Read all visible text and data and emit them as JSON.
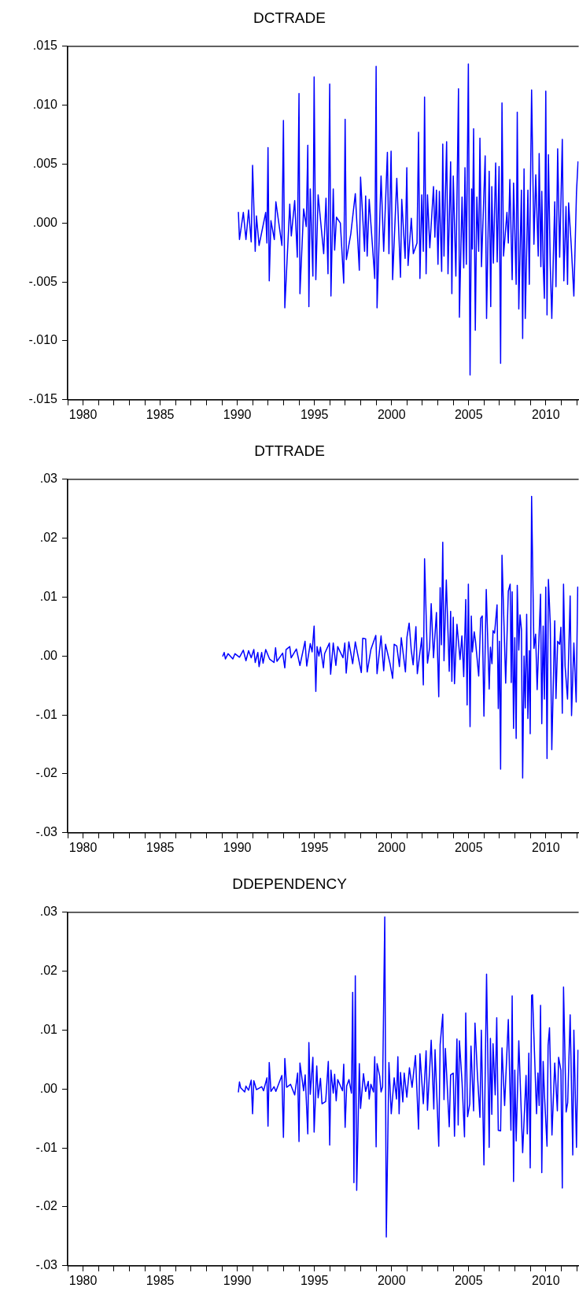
{
  "chart_data": [
    {
      "type": "line",
      "title": "DCTRADE",
      "xlim": [
        1979,
        2012.13
      ],
      "ylim": [
        -0.015,
        0.015
      ],
      "xticks": [
        {
          "value": 1979,
          "label": null
        },
        1980,
        {
          "value": 1981,
          "label": null
        },
        {
          "value": 1982,
          "label": null
        },
        {
          "value": 1983,
          "label": null
        },
        {
          "value": 1984,
          "label": null
        },
        1985,
        {
          "value": 1986,
          "label": null
        },
        {
          "value": 1987,
          "label": null
        },
        {
          "value": 1988,
          "label": null
        },
        {
          "value": 1989,
          "label": null
        },
        1990,
        {
          "value": 1991,
          "label": null
        },
        {
          "value": 1992,
          "label": null
        },
        {
          "value": 1993,
          "label": null
        },
        {
          "value": 1994,
          "label": null
        },
        1995,
        {
          "value": 1996,
          "label": null
        },
        {
          "value": 1997,
          "label": null
        },
        {
          "value": 1998,
          "label": null
        },
        {
          "value": 1999,
          "label": null
        },
        2000,
        {
          "value": 2001,
          "label": null
        },
        {
          "value": 2002,
          "label": null
        },
        {
          "value": 2003,
          "label": null
        },
        {
          "value": 2004,
          "label": null
        },
        2005,
        {
          "value": 2006,
          "label": null
        },
        {
          "value": 2007,
          "label": null
        },
        {
          "value": 2008,
          "label": null
        },
        {
          "value": 2009,
          "label": null
        },
        2010,
        {
          "value": 2011,
          "label": null
        },
        {
          "value": 2012,
          "label": null
        }
      ],
      "yticks": [
        {
          "value": -0.015,
          "label": "-.015"
        },
        {
          "value": -0.01,
          "label": "-.010"
        },
        {
          "value": -0.005,
          "label": "-.005"
        },
        {
          "value": 0,
          "label": ".000"
        },
        {
          "value": 0.005,
          "label": ".005"
        },
        {
          "value": 0.01,
          "label": ".010"
        },
        {
          "value": 0.015,
          "label": ".015"
        }
      ],
      "grid": false,
      "legend": false,
      "marker": "none",
      "line_style": "solid",
      "series": [
        {
          "color": "#0000ff",
          "x": [
            1990.07,
            1990.14,
            1990.39,
            1990.56,
            1990.73,
            1990.9,
            1990.99,
            1991.16,
            1991.24,
            1991.41,
            1991.84,
            1991.92,
            1991.99,
            1992.07,
            1992.18,
            1992.4,
            1992.5,
            1992.89,
            1992.99,
            1993.08,
            1993.4,
            1993.5,
            1993.72,
            1993.89,
            1994.0,
            1994.06,
            1994.3,
            1994.47,
            1994.57,
            1994.64,
            1994.73,
            1994.9,
            1994.98,
            1995.09,
            1995.24,
            1995.6,
            1995.75,
            1995.88,
            1995.99,
            1996.07,
            1996.22,
            1996.31,
            1996.43,
            1996.68,
            1996.9,
            1996.99,
            1997.07,
            1997.36,
            1997.65,
            1997.91,
            1997.99,
            1998.25,
            1998.32,
            1998.42,
            1998.55,
            1998.91,
            1999.0,
            1999.06,
            1999.32,
            1999.49,
            1999.73,
            1999.83,
            1999.97,
            2000.07,
            2000.34,
            2000.58,
            2000.66,
            2000.88,
            2000.99,
            2001.07,
            2001.28,
            2001.41,
            2001.65,
            2001.75,
            2001.84,
            2001.96,
            2002.06,
            2002.14,
            2002.24,
            2002.33,
            2002.48,
            2002.72,
            2002.81,
            2002.91,
            2003.01,
            2003.1,
            2003.25,
            2003.32,
            2003.4,
            2003.57,
            2003.66,
            2003.83,
            2003.91,
            2004.0,
            2004.17,
            2004.34,
            2004.4,
            2004.57,
            2004.68,
            2004.76,
            2004.85,
            2004.98,
            2005.09,
            2005.19,
            2005.24,
            2005.32,
            2005.43,
            2005.53,
            2005.65,
            2005.73,
            2005.83,
            2006.07,
            2006.16,
            2006.33,
            2006.43,
            2006.5,
            2006.6,
            2006.75,
            2006.85,
            2006.97,
            2007.07,
            2007.16,
            2007.26,
            2007.48,
            2007.57,
            2007.67,
            2007.82,
            2007.91,
            2008.08,
            2008.15,
            2008.25,
            2008.42,
            2008.5,
            2008.59,
            2008.67,
            2008.84,
            2008.93,
            2009.08,
            2009.23,
            2009.35,
            2009.51,
            2009.57,
            2009.68,
            2009.74,
            2009.83,
            2009.91,
            2010.0,
            2010.08,
            2010.17,
            2010.29,
            2010.39,
            2010.58,
            2010.66,
            2010.77,
            2010.9,
            2011.07,
            2011.17,
            2011.31,
            2011.41,
            2011.48,
            2011.65,
            2011.82,
            2011.99,
            2012.09
          ],
          "values": [
            0.0009,
            -0.0014,
            0.0009,
            -0.0014,
            0.0011,
            -0.0016,
            0.0049,
            -0.0024,
            0.0006,
            -0.0019,
            0.0009,
            -0.0017,
            0.0064,
            -0.0049,
            0.0002,
            -0.0014,
            0.0018,
            -0.0019,
            0.0087,
            -0.0072,
            0.0016,
            -0.0011,
            0.0019,
            -0.0029,
            0.011,
            -0.006,
            0.0012,
            -0.0003,
            0.0066,
            -0.0071,
            0.0029,
            -0.0045,
            0.0124,
            -0.0048,
            0.0024,
            -0.0026,
            0.0021,
            -0.0043,
            0.0118,
            -0.0062,
            0.0029,
            -0.0023,
            0.0005,
            0.0,
            -0.0051,
            0.0088,
            -0.0031,
            -0.0009,
            0.0025,
            -0.004,
            0.0039,
            -0.0024,
            0.0023,
            -0.0028,
            0.002,
            -0.0047,
            0.0133,
            -0.0072,
            0.004,
            -0.0024,
            0.006,
            -0.0026,
            0.0061,
            -0.0048,
            0.0038,
            -0.0046,
            0.002,
            -0.003,
            0.0047,
            -0.0036,
            0.0004,
            -0.0026,
            -0.0017,
            0.0077,
            -0.0047,
            0.0024,
            -0.0024,
            0.0107,
            -0.0043,
            0.0024,
            -0.0021,
            0.0031,
            -0.0012,
            0.0028,
            -0.0035,
            0.0027,
            -0.0041,
            0.0067,
            -0.0028,
            0.0069,
            -0.0043,
            0.0052,
            -0.006,
            0.004,
            -0.0045,
            0.0114,
            -0.008,
            0.0022,
            -0.0038,
            0.0047,
            -0.0035,
            0.0135,
            -0.0129,
            0.0029,
            -0.0022,
            0.008,
            -0.0091,
            0.0022,
            -0.0024,
            0.0072,
            -0.0037,
            0.0057,
            -0.0081,
            0.0044,
            -0.0071,
            0.0031,
            -0.0034,
            0.0051,
            -0.0033,
            0.0048,
            -0.0119,
            0.0102,
            -0.0028,
            0.0009,
            -0.0017,
            0.0037,
            -0.0048,
            0.0034,
            -0.0052,
            0.0094,
            -0.0073,
            0.0028,
            -0.0098,
            0.0046,
            -0.0081,
            0.0028,
            -0.0052,
            0.0113,
            -0.0018,
            0.0041,
            -0.0028,
            0.0059,
            -0.0037,
            0.0027,
            -0.0035,
            -0.0064,
            0.0112,
            -0.0078,
            0.0058,
            -0.0036,
            -0.0081,
            0.0018,
            -0.0054,
            0.0063,
            -0.0029,
            0.0071,
            -0.0049,
            0.0014,
            -0.0052,
            0.0017,
            -0.0019,
            -0.0062,
            0.0026,
            0.0052
          ]
        }
      ]
    },
    {
      "type": "line",
      "title": "DTTRADE",
      "xlim": [
        1979,
        2012.13
      ],
      "ylim": [
        -0.03,
        0.03
      ],
      "xticks": [
        {
          "value": 1979,
          "label": null
        },
        1980,
        {
          "value": 1981,
          "label": null
        },
        {
          "value": 1982,
          "label": null
        },
        {
          "value": 1983,
          "label": null
        },
        {
          "value": 1984,
          "label": null
        },
        1985,
        {
          "value": 1986,
          "label": null
        },
        {
          "value": 1987,
          "label": null
        },
        {
          "value": 1988,
          "label": null
        },
        {
          "value": 1989,
          "label": null
        },
        1990,
        {
          "value": 1991,
          "label": null
        },
        {
          "value": 1992,
          "label": null
        },
        {
          "value": 1993,
          "label": null
        },
        {
          "value": 1994,
          "label": null
        },
        1995,
        {
          "value": 1996,
          "label": null
        },
        {
          "value": 1997,
          "label": null
        },
        {
          "value": 1998,
          "label": null
        },
        {
          "value": 1999,
          "label": null
        },
        2000,
        {
          "value": 2001,
          "label": null
        },
        {
          "value": 2002,
          "label": null
        },
        {
          "value": 2003,
          "label": null
        },
        {
          "value": 2004,
          "label": null
        },
        2005,
        {
          "value": 2006,
          "label": null
        },
        {
          "value": 2007,
          "label": null
        },
        {
          "value": 2008,
          "label": null
        },
        {
          "value": 2009,
          "label": null
        },
        2010,
        {
          "value": 2011,
          "label": null
        },
        {
          "value": 2012,
          "label": null
        }
      ],
      "yticks": [
        {
          "value": -0.03,
          "label": "-.03"
        },
        {
          "value": -0.02,
          "label": "-.02"
        },
        {
          "value": -0.01,
          "label": "-.01"
        },
        {
          "value": 0,
          "label": ".00"
        },
        {
          "value": 0.01,
          "label": ".01"
        },
        {
          "value": 0.02,
          "label": ".02"
        },
        {
          "value": 0.03,
          "label": ".03"
        }
      ],
      "grid": false,
      "legend": false,
      "marker": "none",
      "line_style": "solid",
      "series": [
        {
          "color": "#0000ff",
          "x": [
            1989.06,
            1989.15,
            1989.23,
            1989.4,
            1989.71,
            1989.85,
            1990.14,
            1990.39,
            1990.56,
            1990.73,
            1990.9,
            1991.07,
            1991.16,
            1991.33,
            1991.41,
            1991.58,
            1991.67,
            1991.84,
            1992.09,
            1992.38,
            1992.48,
            1992.57,
            1992.94,
            1993.08,
            1993.16,
            1993.4,
            1993.49,
            1993.83,
            1994.06,
            1994.39,
            1994.5,
            1994.73,
            1994.85,
            1994.98,
            1995.09,
            1995.17,
            1995.29,
            1995.39,
            1995.58,
            1995.66,
            1995.97,
            1996.05,
            1996.22,
            1996.39,
            1996.51,
            1996.85,
            1996.97,
            1997.06,
            1997.23,
            1997.48,
            1997.65,
            1997.79,
            1998.04,
            1998.13,
            1998.32,
            1998.42,
            1998.66,
            1998.98,
            1999.06,
            1999.32,
            1999.49,
            1999.61,
            1999.9,
            2000.07,
            2000.17,
            2000.34,
            2000.51,
            2000.63,
            2000.9,
            2001.0,
            2001.14,
            2001.28,
            2001.4,
            2001.58,
            2001.67,
            2001.96,
            2002.06,
            2002.14,
            2002.33,
            2002.47,
            2002.57,
            2002.72,
            2002.91,
            2003.06,
            2003.15,
            2003.23,
            2003.32,
            2003.4,
            2003.55,
            2003.74,
            2003.83,
            2003.91,
            2004.0,
            2004.08,
            2004.24,
            2004.44,
            2004.56,
            2004.68,
            2004.81,
            2004.9,
            2004.98,
            2005.09,
            2005.17,
            2005.24,
            2005.36,
            2005.44,
            2005.65,
            2005.78,
            2005.88,
            2005.99,
            2006.14,
            2006.33,
            2006.41,
            2006.51,
            2006.58,
            2006.68,
            2006.84,
            2006.92,
            2006.99,
            2007.07,
            2007.16,
            2007.4,
            2007.57,
            2007.69,
            2007.76,
            2007.82,
            2007.91,
            2007.99,
            2008.08,
            2008.15,
            2008.25,
            2008.33,
            2008.42,
            2008.5,
            2008.59,
            2008.67,
            2008.76,
            2008.84,
            2008.93,
            2008.99,
            2009.08,
            2009.23,
            2009.34,
            2009.44,
            2009.66,
            2009.74,
            2009.83,
            2009.91,
            2010.0,
            2010.08,
            2010.17,
            2010.29,
            2010.39,
            2010.58,
            2010.66,
            2010.77,
            2010.9,
            2010.98,
            2011.07,
            2011.15,
            2011.25,
            2011.41,
            2011.58,
            2011.67,
            2011.82,
            2011.97,
            2012.07
          ],
          "values": [
            0.0,
            0.0006,
            -0.0005,
            0.0004,
            -0.0005,
            0.0004,
            -0.0002,
            0.001,
            -0.0008,
            0.0009,
            -0.0003,
            0.0011,
            -0.0011,
            0.0006,
            -0.0018,
            0.0006,
            -0.0012,
            0.0011,
            -0.0005,
            -0.0011,
            0.0014,
            -0.0009,
            0.0005,
            -0.002,
            0.0011,
            0.0016,
            -0.0003,
            0.0012,
            -0.0016,
            0.0025,
            -0.0017,
            0.0021,
            0.0007,
            0.0051,
            -0.006,
            0.0016,
            0.0,
            0.0015,
            -0.002,
            0.0004,
            0.0022,
            -0.0031,
            0.0022,
            -0.0016,
            0.0016,
            -0.0003,
            0.0022,
            -0.0029,
            0.0024,
            -0.0013,
            0.0024,
            0.0005,
            -0.0028,
            0.003,
            0.0029,
            -0.0027,
            0.0011,
            0.0035,
            -0.003,
            0.0034,
            -0.0025,
            0.002,
            -0.0013,
            -0.0038,
            0.002,
            0.0017,
            -0.0018,
            0.0031,
            -0.0027,
            0.0032,
            0.0056,
            0.0009,
            -0.0015,
            0.005,
            -0.003,
            0.0031,
            -0.0049,
            0.0165,
            -0.0012,
            0.0015,
            0.0089,
            -0.0003,
            0.0074,
            -0.0069,
            0.0116,
            0.0019,
            0.0193,
            -0.0008,
            0.0129,
            -0.0026,
            0.0076,
            -0.0043,
            0.0066,
            -0.0047,
            0.0054,
            -0.0006,
            0.0034,
            -0.0035,
            0.0096,
            -0.0083,
            0.0122,
            -0.012,
            0.0068,
            0.0007,
            0.0041,
            0.0026,
            -0.0034,
            0.0064,
            0.0068,
            -0.0102,
            0.0113,
            -0.0056,
            0.0015,
            -0.0013,
            0.0043,
            0.0039,
            0.0087,
            -0.0089,
            0.0025,
            -0.0192,
            0.0171,
            -0.0046,
            0.011,
            0.0122,
            -0.0045,
            0.0109,
            -0.0123,
            0.0031,
            -0.014,
            0.012,
            0.001,
            0.007,
            0.0045,
            -0.0207,
            0.0,
            -0.0088,
            0.0071,
            -0.0106,
            0.0009,
            -0.0132,
            0.0271,
            0.0013,
            0.0037,
            -0.0057,
            0.0105,
            -0.0115,
            0.0051,
            -0.0073,
            0.0117,
            -0.0174,
            0.013,
            0.0055,
            -0.0159,
            0.006,
            -0.0072,
            0.0025,
            0.002,
            0.0049,
            -0.0097,
            0.0122,
            -0.0017,
            -0.0073,
            0.0102,
            -0.0101,
            0.0022,
            -0.0078,
            0.0117
          ]
        }
      ]
    },
    {
      "type": "line",
      "title": "DDEPENDENCY",
      "xlim": [
        1979,
        2012.13
      ],
      "ylim": [
        -0.03,
        0.03
      ],
      "xticks": [
        {
          "value": 1979,
          "label": null
        },
        1980,
        {
          "value": 1981,
          "label": null
        },
        {
          "value": 1982,
          "label": null
        },
        {
          "value": 1983,
          "label": null
        },
        {
          "value": 1984,
          "label": null
        },
        1985,
        {
          "value": 1986,
          "label": null
        },
        {
          "value": 1987,
          "label": null
        },
        {
          "value": 1988,
          "label": null
        },
        {
          "value": 1989,
          "label": null
        },
        1990,
        {
          "value": 1991,
          "label": null
        },
        {
          "value": 1992,
          "label": null
        },
        {
          "value": 1993,
          "label": null
        },
        {
          "value": 1994,
          "label": null
        },
        1995,
        {
          "value": 1996,
          "label": null
        },
        {
          "value": 1997,
          "label": null
        },
        {
          "value": 1998,
          "label": null
        },
        {
          "value": 1999,
          "label": null
        },
        2000,
        {
          "value": 2001,
          "label": null
        },
        {
          "value": 2002,
          "label": null
        },
        {
          "value": 2003,
          "label": null
        },
        {
          "value": 2004,
          "label": null
        },
        2005,
        {
          "value": 2006,
          "label": null
        },
        {
          "value": 2007,
          "label": null
        },
        {
          "value": 2008,
          "label": null
        },
        {
          "value": 2009,
          "label": null
        },
        2010,
        {
          "value": 2011,
          "label": null
        },
        {
          "value": 2012,
          "label": null
        }
      ],
      "yticks": [
        {
          "value": -0.03,
          "label": "-.03"
        },
        {
          "value": -0.02,
          "label": "-.02"
        },
        {
          "value": -0.01,
          "label": "-.01"
        },
        {
          "value": 0,
          "label": ".00"
        },
        {
          "value": 0.01,
          "label": ".01"
        },
        {
          "value": 0.02,
          "label": ".02"
        },
        {
          "value": 0.03,
          "label": ".03"
        }
      ],
      "grid": false,
      "legend": false,
      "marker": "none",
      "line_style": "solid",
      "series": [
        {
          "color": "#0000ff",
          "x": [
            1990.07,
            1990.14,
            1990.22,
            1990.48,
            1990.56,
            1990.73,
            1990.9,
            1990.99,
            1991.07,
            1991.24,
            1991.58,
            1991.7,
            1991.92,
            1991.99,
            1992.07,
            1992.18,
            1992.38,
            1992.5,
            1992.89,
            1992.99,
            1993.08,
            1993.2,
            1993.45,
            1993.72,
            1993.91,
            1994.0,
            1994.06,
            1994.3,
            1994.4,
            1994.57,
            1994.64,
            1994.73,
            1994.9,
            1994.98,
            1995.15,
            1995.24,
            1995.39,
            1995.49,
            1995.73,
            1995.9,
            1995.99,
            1996.07,
            1996.22,
            1996.31,
            1996.41,
            1996.51,
            1996.82,
            1996.9,
            1996.99,
            1997.09,
            1997.24,
            1997.4,
            1997.48,
            1997.56,
            1997.65,
            1997.74,
            1997.91,
            1997.99,
            1998.18,
            1998.32,
            1998.49,
            1998.55,
            1998.66,
            1998.83,
            1998.91,
            1999.0,
            1999.06,
            1999.23,
            1999.32,
            1999.42,
            1999.56,
            1999.66,
            1999.83,
            1999.98,
            2000.17,
            2000.32,
            2000.41,
            2000.49,
            2000.58,
            2000.73,
            2000.82,
            2000.99,
            2001.16,
            2001.33,
            2001.55,
            2001.75,
            2001.84,
            2002.06,
            2002.24,
            2002.33,
            2002.57,
            2002.74,
            2002.82,
            2003.06,
            2003.15,
            2003.32,
            2003.4,
            2003.49,
            2003.74,
            2003.83,
            2004.0,
            2004.08,
            2004.24,
            2004.32,
            2004.4,
            2004.57,
            2004.73,
            2004.81,
            2004.93,
            2005.07,
            2005.15,
            2005.32,
            2005.41,
            2005.56,
            2005.73,
            2005.82,
            2005.99,
            2006.16,
            2006.33,
            2006.41,
            2006.5,
            2006.58,
            2006.72,
            2006.82,
            2006.92,
            2007.07,
            2007.16,
            2007.33,
            2007.57,
            2007.74,
            2007.82,
            2007.91,
            2007.99,
            2008.08,
            2008.25,
            2008.5,
            2008.72,
            2008.8,
            2008.9,
            2008.99,
            2009.08,
            2009.14,
            2009.4,
            2009.49,
            2009.57,
            2009.66,
            2009.74,
            2009.83,
            2009.91,
            2010.08,
            2010.15,
            2010.24,
            2010.4,
            2010.58,
            2010.75,
            2010.83,
            2010.98,
            2011.07,
            2011.15,
            2011.32,
            2011.42,
            2011.58,
            2011.75,
            2011.82,
            2011.99,
            2012.09
          ],
          "values": [
            -0.0005,
            0.0012,
            0.0002,
            -0.0005,
            0.0005,
            -0.0002,
            0.0015,
            -0.0042,
            0.0014,
            -0.0001,
            0.0004,
            -0.0003,
            0.0019,
            -0.0063,
            0.0045,
            -0.0004,
            0.0004,
            -0.0004,
            0.0023,
            -0.0082,
            0.0052,
            0.0003,
            0.0008,
            -0.001,
            0.0027,
            -0.0089,
            0.0044,
            -0.0003,
            0.0024,
            -0.0076,
            0.0079,
            -0.0009,
            0.0054,
            -0.0073,
            0.0039,
            -0.0015,
            0.0018,
            -0.0025,
            -0.0021,
            0.0047,
            -0.0095,
            0.0032,
            -0.0007,
            0.0025,
            -0.002,
            0.0016,
            -0.0003,
            0.0042,
            -0.0065,
            0.0005,
            0.0016,
            -0.0007,
            0.0164,
            -0.0159,
            0.0192,
            -0.0172,
            0.0043,
            -0.0033,
            0.0026,
            -0.0004,
            0.0013,
            -0.0017,
            0.0008,
            -0.0005,
            0.0055,
            -0.0098,
            0.0043,
            0.0022,
            -0.0005,
            0.0004,
            0.0292,
            -0.0251,
            0.0045,
            -0.0042,
            0.0019,
            -0.0017,
            0.0055,
            -0.0042,
            0.0028,
            -0.0022,
            0.0027,
            -0.0014,
            0.0036,
            0.0003,
            0.0057,
            -0.0068,
            0.006,
            -0.0025,
            0.0065,
            -0.0036,
            0.0083,
            -0.0034,
            0.0067,
            -0.0097,
            0.0075,
            0.0127,
            -0.0018,
            0.0069,
            -0.0064,
            0.0024,
            0.0027,
            -0.008,
            0.0085,
            -0.0061,
            0.0082,
            0.0012,
            -0.0081,
            0.0129,
            -0.0047,
            -0.0025,
            0.0073,
            -0.0037,
            0.0112,
            0.0028,
            -0.0048,
            0.01,
            -0.0129,
            0.0195,
            -0.0099,
            0.0086,
            -0.0043,
            0.0077,
            -0.001,
            0.0121,
            -0.007,
            -0.0071,
            0.007,
            -0.0028,
            0.0118,
            -0.007,
            0.0158,
            -0.0157,
            0.0032,
            -0.0088,
            0.0082,
            -0.0108,
            0.0023,
            -0.0076,
            0.0061,
            -0.0134,
            0.0159,
            0.016,
            -0.0042,
            0.0027,
            -0.0028,
            0.0142,
            -0.0142,
            0.0047,
            -0.0008,
            -0.0097,
            0.0074,
            0.0104,
            -0.0078,
            0.0044,
            -0.0037,
            0.0054,
            0.0032,
            -0.0168,
            0.0173,
            -0.0039,
            -0.0023,
            0.0126,
            -0.0112,
            0.01,
            -0.0099,
            0.0066
          ]
        }
      ]
    }
  ]
}
